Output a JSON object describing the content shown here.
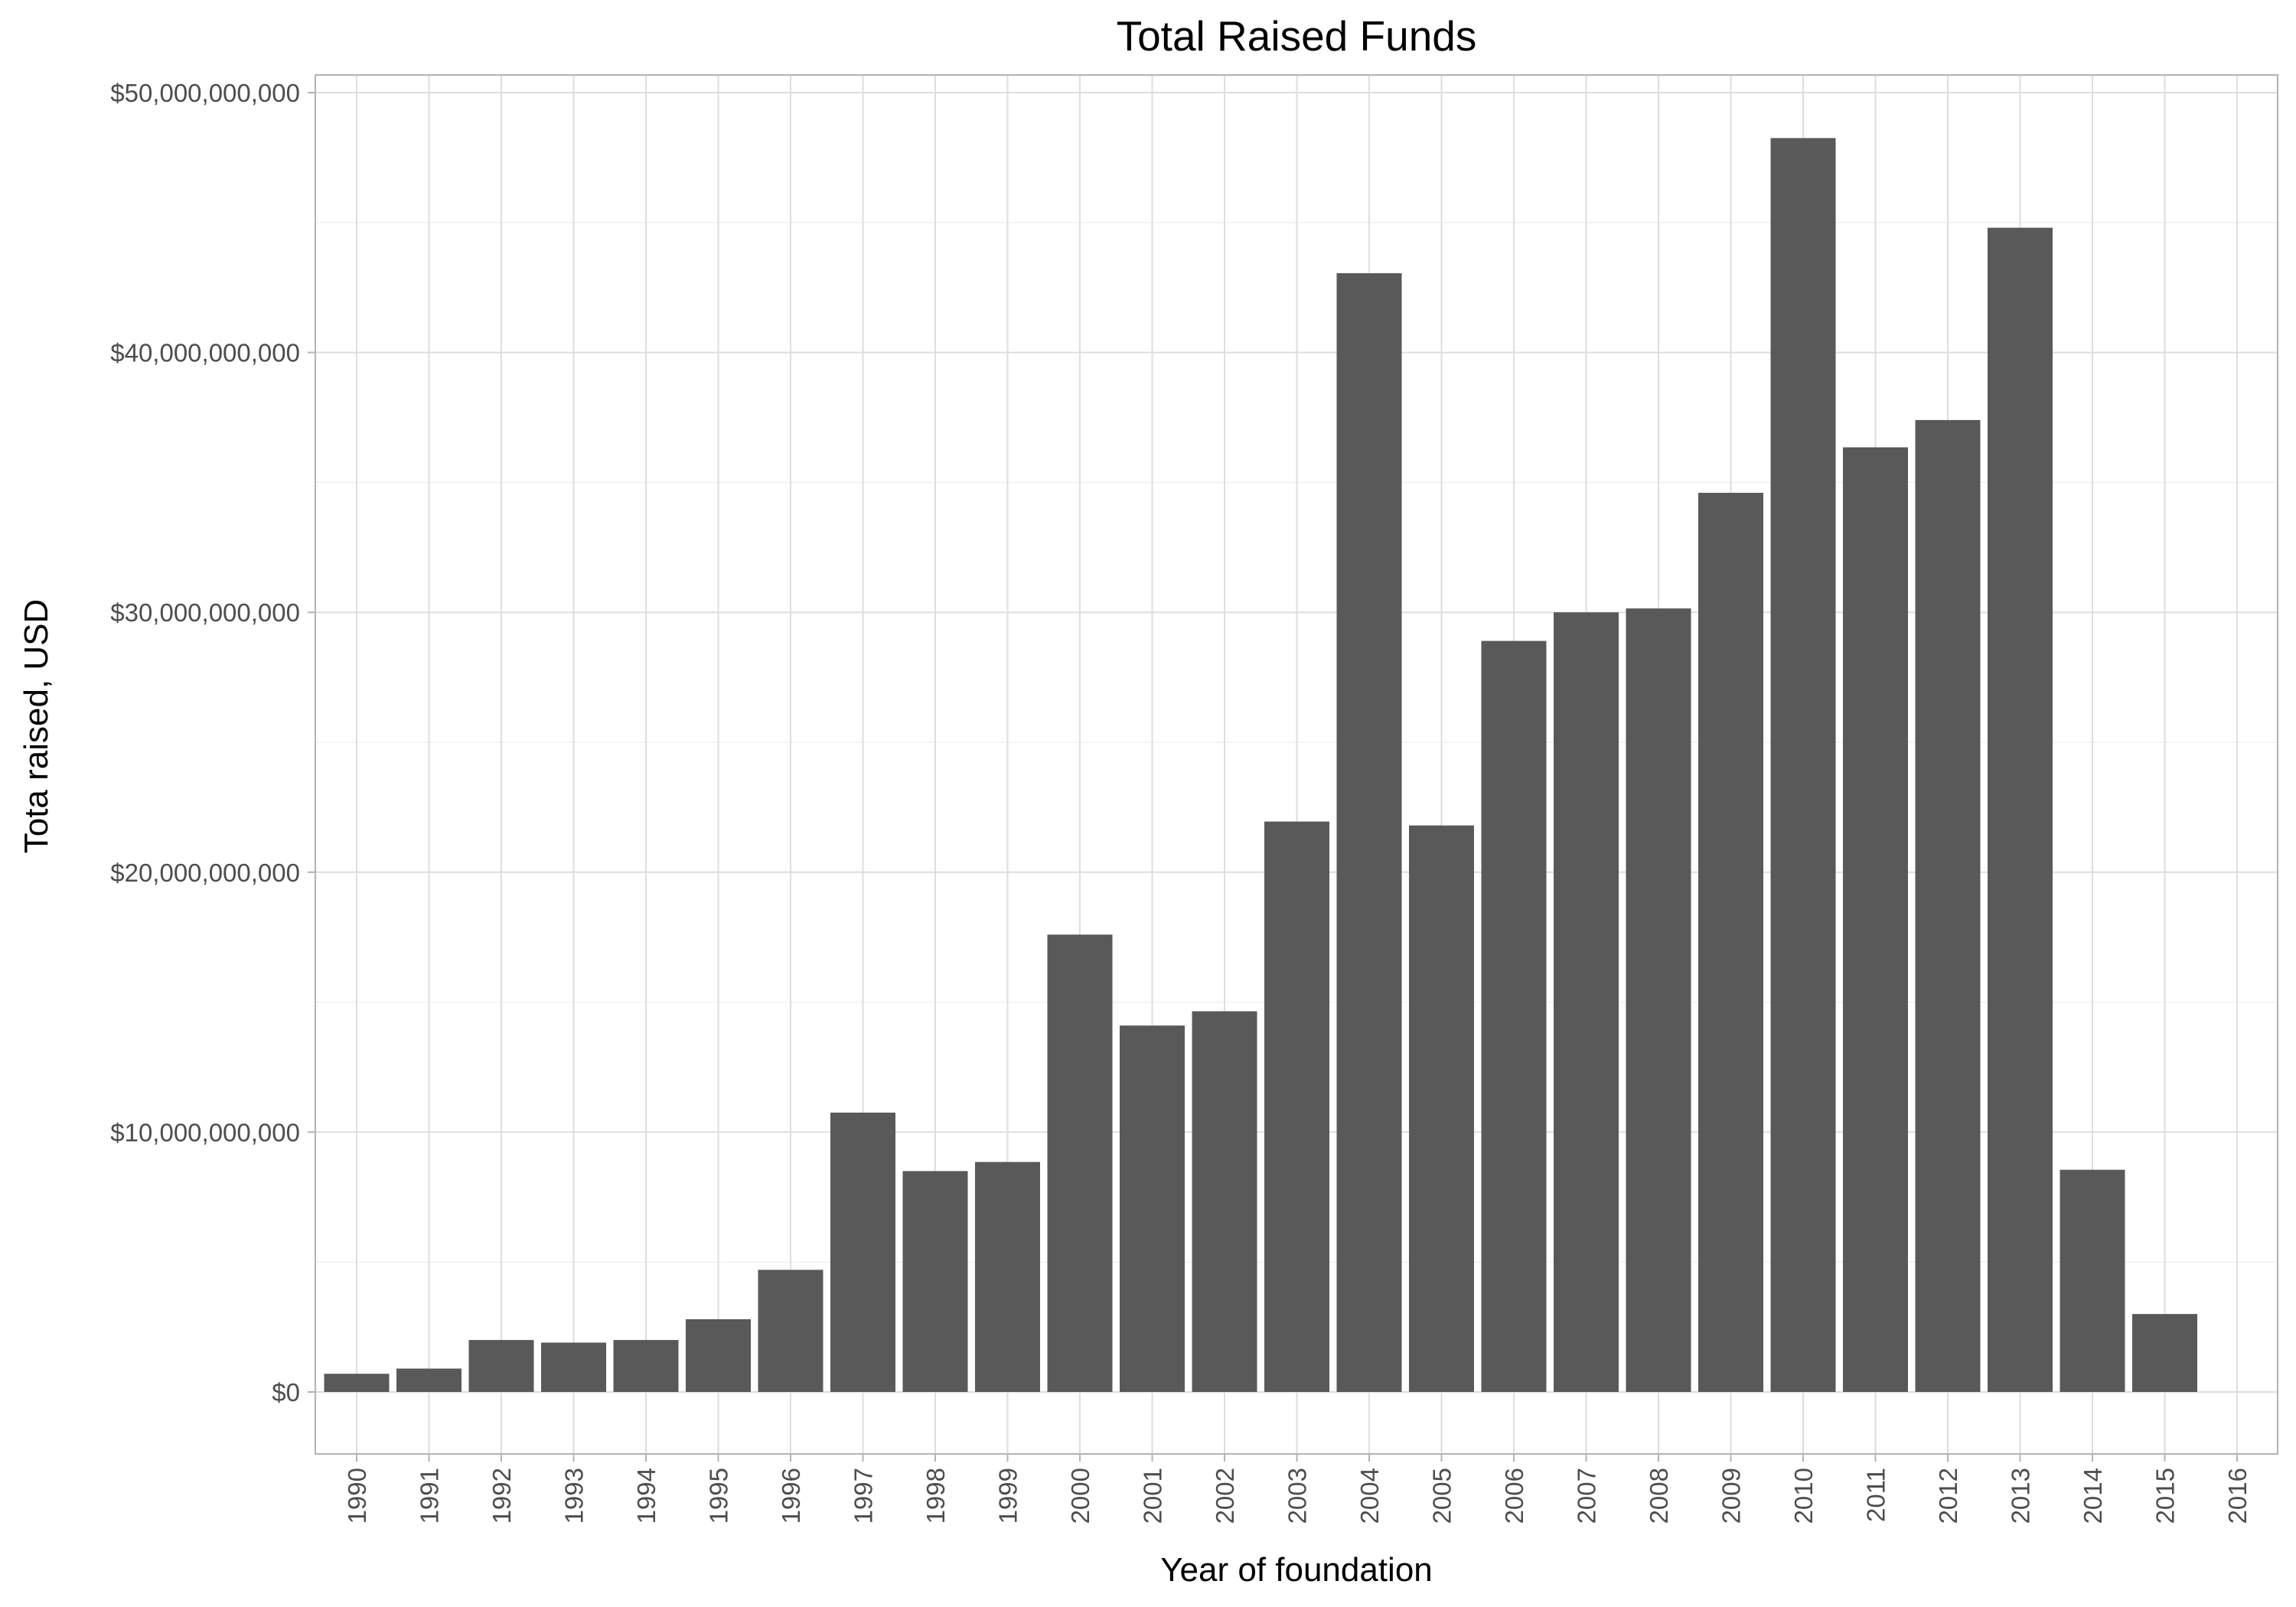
{
  "chart_data": {
    "type": "bar",
    "title": "Total Raised Funds",
    "xlabel": "Year of foundation",
    "ylabel": "Tota raised, USD",
    "categories": [
      "1990",
      "1991",
      "1992",
      "1993",
      "1994",
      "1995",
      "1996",
      "1997",
      "1998",
      "1999",
      "2000",
      "2001",
      "2002",
      "2003",
      "2004",
      "2005",
      "2006",
      "2007",
      "2008",
      "2009",
      "2010",
      "2011",
      "2012",
      "2013",
      "2014",
      "2015",
      "2016"
    ],
    "values": [
      700000000,
      900000000,
      2000000000,
      1900000000,
      2000000000,
      2800000000,
      4700000000,
      10750000000,
      8500000000,
      8850000000,
      17600000000,
      14100000000,
      14650000000,
      21950000000,
      43050000000,
      21800000000,
      28900000000,
      30000000000,
      30150000000,
      34600000000,
      48250000000,
      36350000000,
      37400000000,
      44800000000,
      8550000000,
      3000000000,
      null
    ],
    "ylim": [
      0,
      50000000000
    ],
    "yticks": [
      0,
      10000000000,
      20000000000,
      30000000000,
      40000000000,
      50000000000
    ],
    "ytick_labels": [
      "$0",
      "$10,000,000,000",
      "$20,000,000,000",
      "$30,000,000,000",
      "$40,000,000,000",
      "$50,000,000,000"
    ],
    "grid": true,
    "colors": {
      "bar": "#595959",
      "grid_major": "#dedede",
      "grid_minor": "#f0f0f0",
      "panel_border": "#b3b3b3",
      "tick_mark": "#b3b3b3"
    }
  }
}
